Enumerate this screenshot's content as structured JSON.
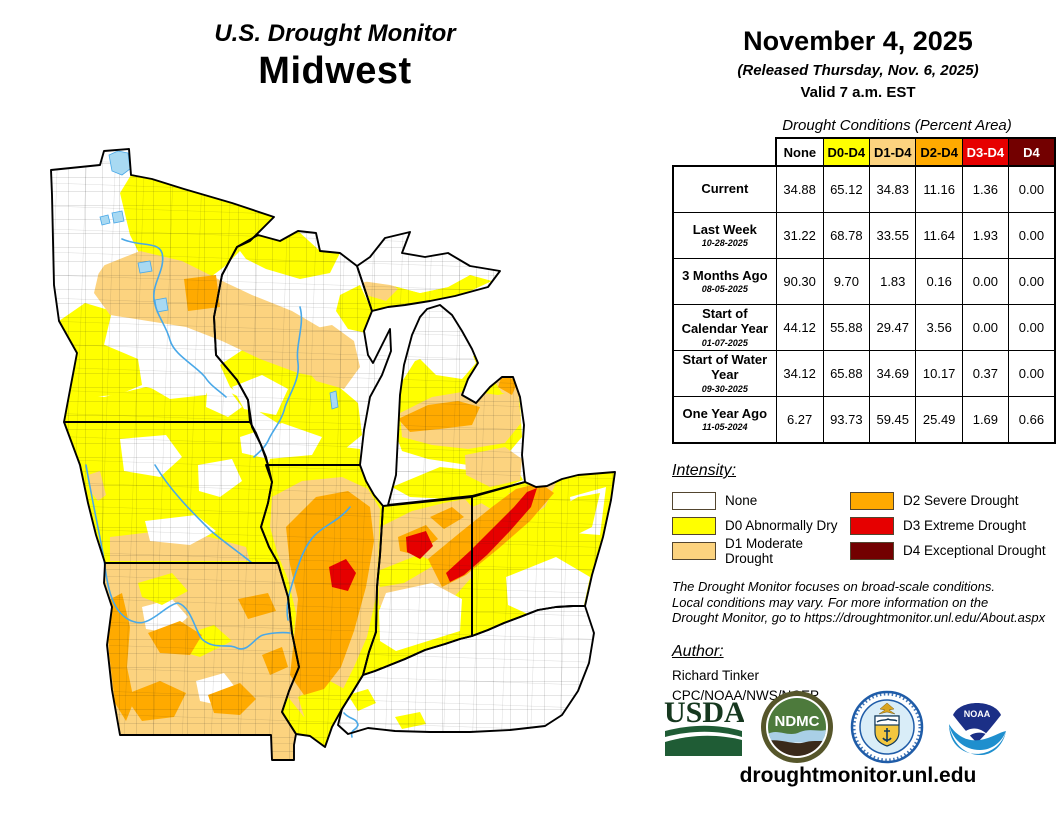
{
  "page": {
    "title_line1": "U.S. Drought Monitor",
    "title_line2": "Midwest"
  },
  "header": {
    "date": "November 4, 2025",
    "released": "(Released Thursday, Nov. 6, 2025)",
    "valid": "Valid 7 a.m. EST"
  },
  "table": {
    "caption": "Drought Conditions (Percent Area)",
    "columns": [
      {
        "label": "None",
        "color": "#FFFFFF",
        "text_color": "#000000"
      },
      {
        "label": "D0-D4",
        "color": "#FFFF00",
        "text_color": "#000000"
      },
      {
        "label": "D1-D4",
        "color": "#FCD37F",
        "text_color": "#000000"
      },
      {
        "label": "D2-D4",
        "color": "#FFAA00",
        "text_color": "#000000"
      },
      {
        "label": "D3-D4",
        "color": "#E60000",
        "text_color": "#FFFFFF"
      },
      {
        "label": "D4",
        "color": "#730000",
        "text_color": "#FFFFFF"
      }
    ],
    "rows": [
      {
        "label": "Current",
        "date": "",
        "values": [
          "34.88",
          "65.12",
          "34.83",
          "11.16",
          "1.36",
          "0.00"
        ]
      },
      {
        "label": "Last Week",
        "date": "10-28-2025",
        "values": [
          "31.22",
          "68.78",
          "33.55",
          "11.64",
          "1.93",
          "0.00"
        ]
      },
      {
        "label": "3 Months Ago",
        "date": "08-05-2025",
        "values": [
          "90.30",
          "9.70",
          "1.83",
          "0.16",
          "0.00",
          "0.00"
        ]
      },
      {
        "label": "Start of Calendar Year",
        "date": "01-07-2025",
        "values": [
          "44.12",
          "55.88",
          "29.47",
          "3.56",
          "0.00",
          "0.00"
        ]
      },
      {
        "label": "Start of Water Year",
        "date": "09-30-2025",
        "values": [
          "34.12",
          "65.88",
          "34.69",
          "10.17",
          "0.37",
          "0.00"
        ]
      },
      {
        "label": "One Year Ago",
        "date": "11-05-2024",
        "values": [
          "6.27",
          "93.73",
          "59.45",
          "25.49",
          "1.69",
          "0.66"
        ]
      }
    ]
  },
  "legend": {
    "title": "Intensity:",
    "items": [
      {
        "label": "None",
        "color": "#FFFFFF"
      },
      {
        "label": "D0 Abnormally Dry",
        "color": "#FFFF00"
      },
      {
        "label": "D1 Moderate Drought",
        "color": "#FCD37F"
      },
      {
        "label": "D2 Severe Drought",
        "color": "#FFAA00"
      },
      {
        "label": "D3 Extreme Drought",
        "color": "#E60000"
      },
      {
        "label": "D4 Exceptional Drought",
        "color": "#730000"
      }
    ]
  },
  "notes": {
    "line1": "The Drought Monitor focuses on broad-scale conditions.",
    "line2": "Local conditions may vary. For more information on the",
    "line3": "Drought Monitor, go to https://droughtmonitor.unl.edu/About.aspx"
  },
  "author": {
    "title": "Author:",
    "name": "Richard Tinker",
    "org": "CPC/NOAA/NWS/NCEP"
  },
  "logos": {
    "usda": "USDA",
    "ndmc": "NDMC",
    "noaa": "NOAA"
  },
  "footer": {
    "url": "droughtmonitor.unl.edu"
  },
  "map": {
    "region": "Midwest",
    "colors": {
      "none": "#FFFFFF",
      "d0": "#FFFF00",
      "d1": "#FCD37F",
      "d2": "#FFAA00",
      "d3": "#E60000",
      "d4": "#730000",
      "river": "#49a8e8",
      "lake": "#a8d9f2"
    }
  }
}
